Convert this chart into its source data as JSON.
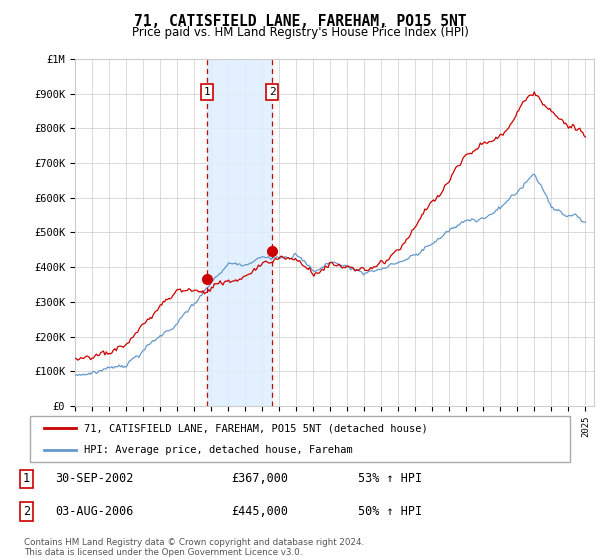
{
  "title": "71, CATISFIELD LANE, FAREHAM, PO15 5NT",
  "subtitle": "Price paid vs. HM Land Registry's House Price Index (HPI)",
  "legend_line1": "71, CATISFIELD LANE, FAREHAM, PO15 5NT (detached house)",
  "legend_line2": "HPI: Average price, detached house, Fareham",
  "annotation1_date": "30-SEP-2002",
  "annotation1_price": "£367,000",
  "annotation1_hpi": "53% ↑ HPI",
  "annotation2_date": "03-AUG-2006",
  "annotation2_price": "£445,000",
  "annotation2_hpi": "50% ↑ HPI",
  "footer": "Contains HM Land Registry data © Crown copyright and database right 2024.\nThis data is licensed under the Open Government Licence v3.0.",
  "red_color": "#cc0000",
  "blue_color": "#6699cc",
  "shade_color": "#ddeeff",
  "background_color": "#ffffff",
  "grid_color": "#cccccc",
  "ylim": [
    0,
    1000000
  ],
  "xlim_start": 1995.0,
  "xlim_end": 2025.5,
  "marker1_year": 2002.75,
  "marker1_value": 367000,
  "marker2_year": 2006.58,
  "marker2_value": 445000
}
